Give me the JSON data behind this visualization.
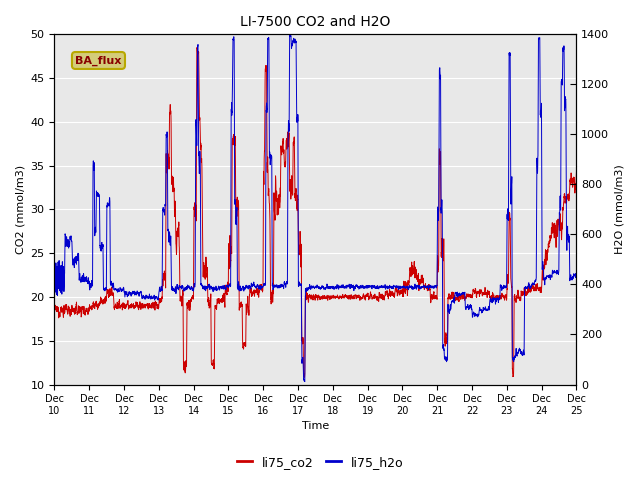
{
  "title": "LI-7500 CO2 and H2O",
  "xlabel": "Time",
  "ylabel_left": "CO2 (mmol/m3)",
  "ylabel_right": "H2O (mmol/m3)",
  "legend_label": "BA_flux",
  "series_co2_label": "li75_co2",
  "series_h2o_label": "li75_h2o",
  "co2_color": "#cc0000",
  "h2o_color": "#0000cc",
  "ylim_left": [
    10,
    50
  ],
  "ylim_right": [
    0,
    1400
  ],
  "yticks_left": [
    10,
    15,
    20,
    25,
    30,
    35,
    40,
    45,
    50
  ],
  "yticks_right": [
    0,
    200,
    400,
    600,
    800,
    1000,
    1200,
    1400
  ],
  "xtick_labels": [
    "Dec\n10",
    "Dec\n11",
    "Dec\n12",
    "Dec\n13",
    "Dec\n14",
    "Dec\n15",
    "Dec\n16",
    "Dec\n17",
    "Dec\n18",
    "Dec\n19",
    "Dec\n20",
    "Dec\n21",
    "Dec\n22",
    "Dec\n23",
    "Dec\n24",
    "Dec\n25"
  ],
  "background_color": "#e8e8e8",
  "legend_box_facecolor": "#d4cc7a",
  "legend_box_edgecolor": "#b8a800",
  "legend_text_color": "#880000",
  "line_width": 0.7,
  "n_points": 4000
}
